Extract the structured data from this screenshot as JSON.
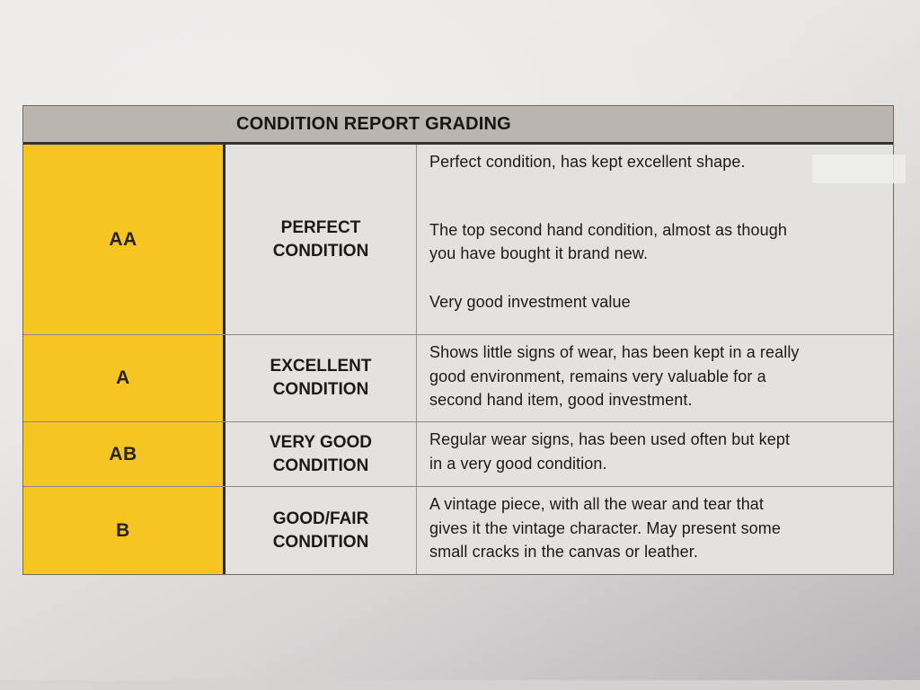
{
  "colors": {
    "grade_column": "#f7c522",
    "header_bar": "#bab6af",
    "cell_background": "#e4e2de",
    "text": "#1c1b19"
  },
  "table": {
    "header": {
      "title": "CONDITION REPORT GRADING"
    },
    "rows": [
      {
        "grade": "AA",
        "condition": "PERFECT\nCONDITION",
        "description": [
          "Perfect condition, has kept excellent shape.",
          "The top second hand condition, almost as though\nyou have bought it brand new.",
          "Very good investment value"
        ]
      },
      {
        "grade": "A",
        "condition": "EXCELLENT\nCONDITION",
        "description": [
          "Shows little signs of wear, has been kept in a really\ngood environment, remains very valuable for a\nsecond hand item, good investment."
        ]
      },
      {
        "grade": "AB",
        "condition": "VERY GOOD\nCONDITION",
        "description": [
          "Regular wear signs, has been used often but kept\nin a very good condition."
        ]
      },
      {
        "grade": "B",
        "condition": "GOOD/FAIR\nCONDITION",
        "description": [
          "A vintage piece, with all the wear and tear that\ngives it the vintage character. May present some\nsmall cracks in the canvas or leather."
        ]
      }
    ]
  }
}
